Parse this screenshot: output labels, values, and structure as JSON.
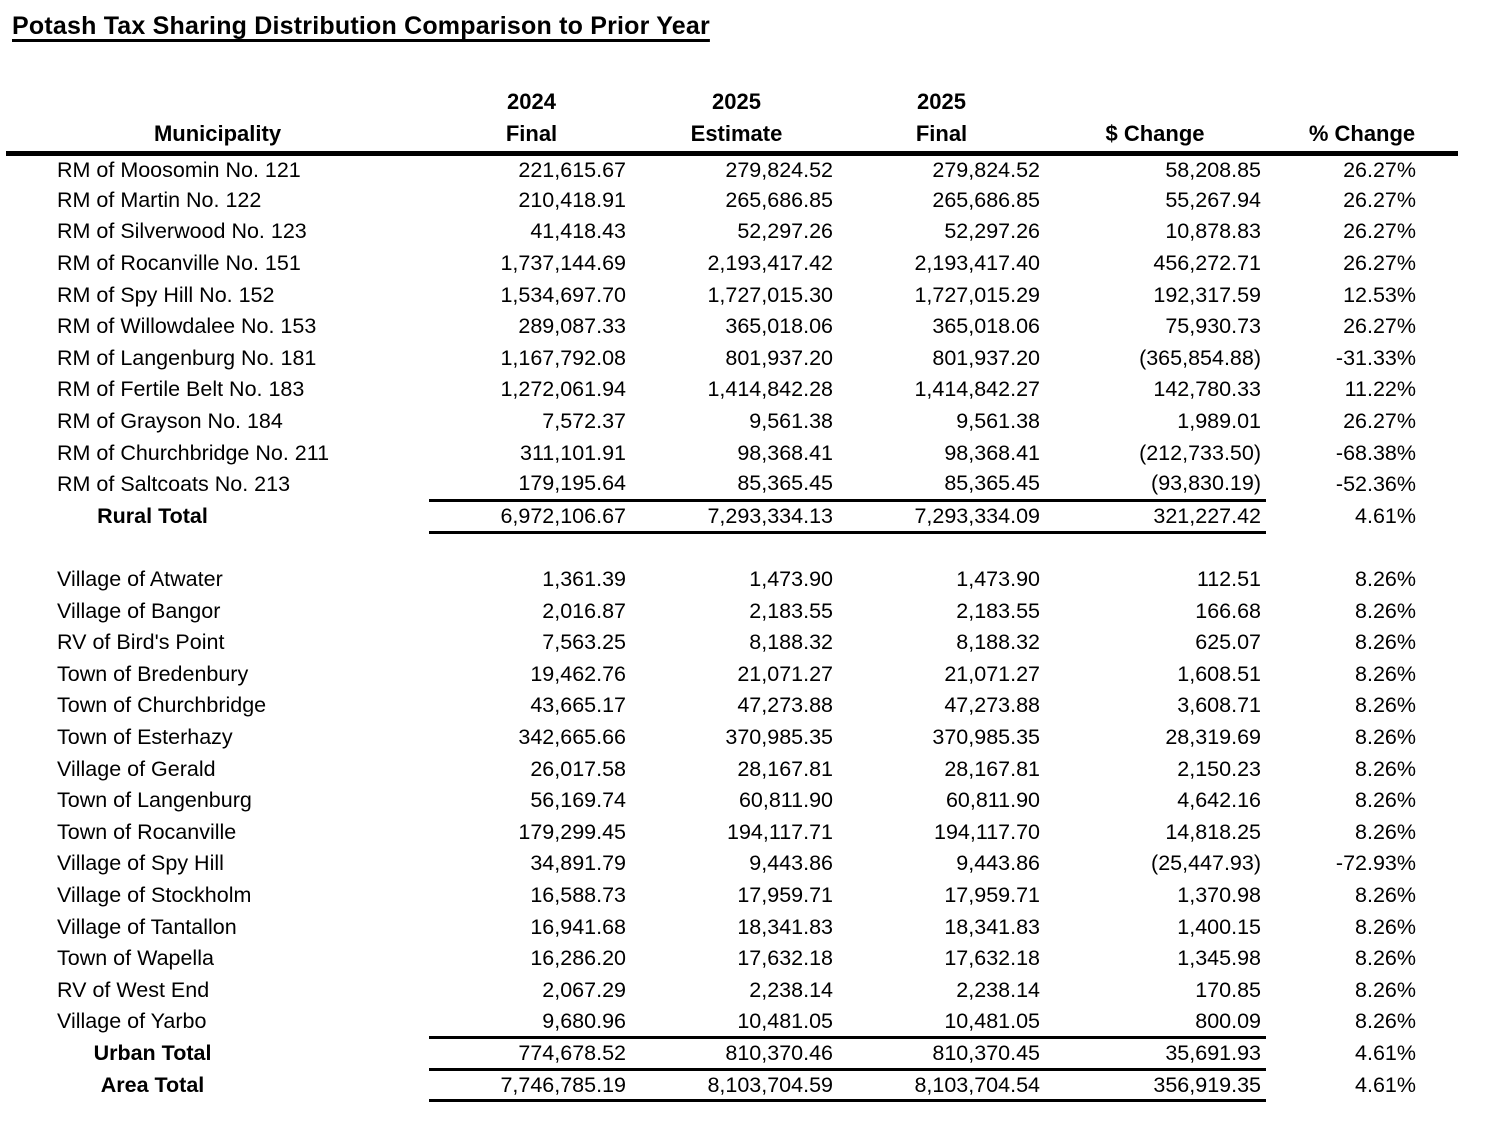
{
  "title": "Potash Tax Sharing Distribution Comparison to Prior Year",
  "colors": {
    "text": "#000000",
    "background": "#ffffff",
    "rule": "#000000"
  },
  "table": {
    "header": {
      "year_row": [
        "",
        "2024",
        "2025",
        "2025",
        "",
        ""
      ],
      "label_row": [
        "Municipality",
        "Final",
        "Estimate",
        "Final",
        "$ Change",
        "% Change"
      ]
    },
    "rows": [
      {
        "type": "data",
        "name": "RM of Moosomin No. 121",
        "final_2024": "221,615.67",
        "estimate_2025": "279,824.52",
        "final_2025": "279,824.52",
        "dollar_change": "58,208.85",
        "pct_change": "26.27%"
      },
      {
        "type": "data",
        "name": "RM of Martin No. 122",
        "final_2024": "210,418.91",
        "estimate_2025": "265,686.85",
        "final_2025": "265,686.85",
        "dollar_change": "55,267.94",
        "pct_change": "26.27%"
      },
      {
        "type": "data",
        "name": "RM of Silverwood No. 123",
        "final_2024": "41,418.43",
        "estimate_2025": "52,297.26",
        "final_2025": "52,297.26",
        "dollar_change": "10,878.83",
        "pct_change": "26.27%"
      },
      {
        "type": "data",
        "name": "RM of Rocanville No. 151",
        "final_2024": "1,737,144.69",
        "estimate_2025": "2,193,417.42",
        "final_2025": "2,193,417.40",
        "dollar_change": "456,272.71",
        "pct_change": "26.27%"
      },
      {
        "type": "data",
        "name": "RM of Spy Hill No. 152",
        "final_2024": "1,534,697.70",
        "estimate_2025": "1,727,015.30",
        "final_2025": "1,727,015.29",
        "dollar_change": "192,317.59",
        "pct_change": "12.53%"
      },
      {
        "type": "data",
        "name": "RM of Willowdalee No. 153",
        "final_2024": "289,087.33",
        "estimate_2025": "365,018.06",
        "final_2025": "365,018.06",
        "dollar_change": "75,930.73",
        "pct_change": "26.27%"
      },
      {
        "type": "data",
        "name": "RM of Langenburg No. 181",
        "final_2024": "1,167,792.08",
        "estimate_2025": "801,937.20",
        "final_2025": "801,937.20",
        "dollar_change": "(365,854.88)",
        "pct_change": "-31.33%"
      },
      {
        "type": "data",
        "name": "RM of Fertile Belt No. 183",
        "final_2024": "1,272,061.94",
        "estimate_2025": "1,414,842.28",
        "final_2025": "1,414,842.27",
        "dollar_change": "142,780.33",
        "pct_change": "11.22%"
      },
      {
        "type": "data",
        "name": "RM of Grayson No. 184",
        "final_2024": "7,572.37",
        "estimate_2025": "9,561.38",
        "final_2025": "9,561.38",
        "dollar_change": "1,989.01",
        "pct_change": "26.27%"
      },
      {
        "type": "data",
        "name": "RM of Churchbridge No. 211",
        "final_2024": "311,101.91",
        "estimate_2025": "98,368.41",
        "final_2025": "98,368.41",
        "dollar_change": "(212,733.50)",
        "pct_change": "-68.38%"
      },
      {
        "type": "data",
        "name": "RM of Saltcoats No. 213",
        "final_2024": "179,195.64",
        "estimate_2025": "85,365.45",
        "final_2025": "85,365.45",
        "dollar_change": "(93,830.19)",
        "pct_change": "-52.36%"
      },
      {
        "type": "total",
        "name": "Rural Total",
        "final_2024": "6,972,106.67",
        "estimate_2025": "7,293,334.13",
        "final_2025": "7,293,334.09",
        "dollar_change": "321,227.42",
        "pct_change": "4.61%"
      },
      {
        "type": "spacer"
      },
      {
        "type": "data",
        "name": "Village of Atwater",
        "final_2024": "1,361.39",
        "estimate_2025": "1,473.90",
        "final_2025": "1,473.90",
        "dollar_change": "112.51",
        "pct_change": "8.26%"
      },
      {
        "type": "data",
        "name": "Village of Bangor",
        "final_2024": "2,016.87",
        "estimate_2025": "2,183.55",
        "final_2025": "2,183.55",
        "dollar_change": "166.68",
        "pct_change": "8.26%"
      },
      {
        "type": "data",
        "name": "RV of Bird's Point",
        "final_2024": "7,563.25",
        "estimate_2025": "8,188.32",
        "final_2025": "8,188.32",
        "dollar_change": "625.07",
        "pct_change": "8.26%"
      },
      {
        "type": "data",
        "name": "Town of Bredenbury",
        "final_2024": "19,462.76",
        "estimate_2025": "21,071.27",
        "final_2025": "21,071.27",
        "dollar_change": "1,608.51",
        "pct_change": "8.26%"
      },
      {
        "type": "data",
        "name": "Town of Churchbridge",
        "final_2024": "43,665.17",
        "estimate_2025": "47,273.88",
        "final_2025": "47,273.88",
        "dollar_change": "3,608.71",
        "pct_change": "8.26%"
      },
      {
        "type": "data",
        "name": "Town of Esterhazy",
        "final_2024": "342,665.66",
        "estimate_2025": "370,985.35",
        "final_2025": "370,985.35",
        "dollar_change": "28,319.69",
        "pct_change": "8.26%"
      },
      {
        "type": "data",
        "name": "Village of Gerald",
        "final_2024": "26,017.58",
        "estimate_2025": "28,167.81",
        "final_2025": "28,167.81",
        "dollar_change": "2,150.23",
        "pct_change": "8.26%"
      },
      {
        "type": "data",
        "name": "Town of Langenburg",
        "final_2024": "56,169.74",
        "estimate_2025": "60,811.90",
        "final_2025": "60,811.90",
        "dollar_change": "4,642.16",
        "pct_change": "8.26%"
      },
      {
        "type": "data",
        "name": "Town of Rocanville",
        "final_2024": "179,299.45",
        "estimate_2025": "194,117.71",
        "final_2025": "194,117.70",
        "dollar_change": "14,818.25",
        "pct_change": "8.26%"
      },
      {
        "type": "data",
        "name": "Village of Spy Hill",
        "final_2024": "34,891.79",
        "estimate_2025": "9,443.86",
        "final_2025": "9,443.86",
        "dollar_change": "(25,447.93)",
        "pct_change": "-72.93%"
      },
      {
        "type": "data",
        "name": "Village of Stockholm",
        "final_2024": "16,588.73",
        "estimate_2025": "17,959.71",
        "final_2025": "17,959.71",
        "dollar_change": "1,370.98",
        "pct_change": "8.26%"
      },
      {
        "type": "data",
        "name": "Village of Tantallon",
        "final_2024": "16,941.68",
        "estimate_2025": "18,341.83",
        "final_2025": "18,341.83",
        "dollar_change": "1,400.15",
        "pct_change": "8.26%"
      },
      {
        "type": "data",
        "name": "Town of Wapella",
        "final_2024": "16,286.20",
        "estimate_2025": "17,632.18",
        "final_2025": "17,632.18",
        "dollar_change": "1,345.98",
        "pct_change": "8.26%"
      },
      {
        "type": "data",
        "name": "RV of West End",
        "final_2024": "2,067.29",
        "estimate_2025": "2,238.14",
        "final_2025": "2,238.14",
        "dollar_change": "170.85",
        "pct_change": "8.26%"
      },
      {
        "type": "data",
        "name": "Village of Yarbo",
        "final_2024": "9,680.96",
        "estimate_2025": "10,481.05",
        "final_2025": "10,481.05",
        "dollar_change": "800.09",
        "pct_change": "8.26%"
      },
      {
        "type": "total",
        "name": "Urban Total",
        "final_2024": "774,678.52",
        "estimate_2025": "810,370.46",
        "final_2025": "810,370.45",
        "dollar_change": "35,691.93",
        "pct_change": "4.61%"
      },
      {
        "type": "total",
        "name": "Area Total",
        "final_2024": "7,746,785.19",
        "estimate_2025": "8,103,704.59",
        "final_2025": "8,103,704.54",
        "dollar_change": "356,919.35",
        "pct_change": "4.61%"
      }
    ]
  }
}
